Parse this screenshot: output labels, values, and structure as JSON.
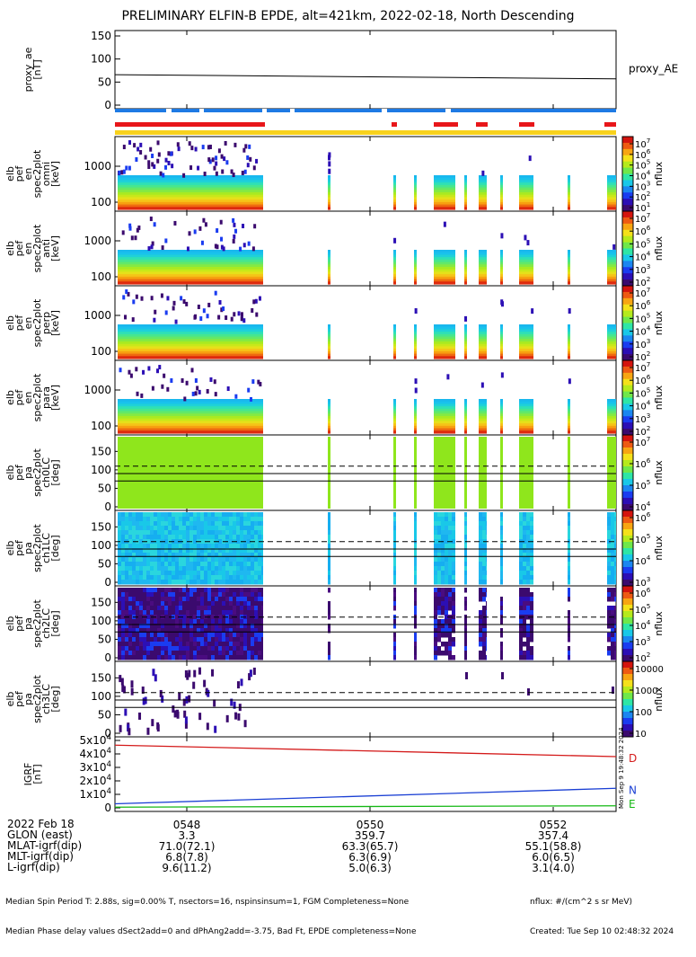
{
  "title": "PRELIMINARY ELFIN-B EPDE, alt=421km, 2022-02-18, North Descending",
  "side_stamp": "Mon Sep  9 19:48:32 2024",
  "time_ticks": [
    "0548",
    "0550",
    "0552"
  ],
  "orbit_rows": [
    {
      "label": "2022 Feb 18",
      "values": [
        "0548",
        "0550",
        "0552"
      ]
    },
    {
      "label": "GLON (east)",
      "values": [
        "3.3",
        "359.7",
        "357.4"
      ]
    },
    {
      "label": "MLAT-igrf(dip)",
      "values": [
        "71.0(72.1)",
        "63.3(65.7)",
        "55.1(58.8)"
      ]
    },
    {
      "label": "MLT-igrf(dip)",
      "values": [
        "6.8(7.8)",
        "6.3(6.9)",
        "6.0(6.5)"
      ]
    },
    {
      "label": "L-igrf(dip)",
      "values": [
        "9.6(11.2)",
        "5.0(6.3)",
        "3.1(4.0)"
      ]
    }
  ],
  "footer_left": [
    "Median Spin Period T: 2.88s, sig=0.00% T, nsectors=16, nspinsinsum=1, FGM Completeness=None",
    "Median Phase delay values dSect2add=0 and dPhAng2add=-3.75, Bad Ft, EPDE completeness=None"
  ],
  "footer_right": [
    "nflux: #/(cm^2 s sr MeV)",
    "Created: Tue Sep 10 02:48:32 2024"
  ],
  "colors": {
    "science_bar": "#e8161a",
    "fast_bar": "#1e7ae4",
    "sun_bar": "#f8d21d",
    "line_D": "#d41a1a",
    "line_N": "#1a3fd4",
    "line_E": "#14b814"
  },
  "chart_data": [
    {
      "id": "proxy_ae",
      "type": "line",
      "ylabel": "proxy_ae [nT]",
      "yticks": [
        "150",
        "100",
        "50",
        "0"
      ],
      "ylim": [
        0,
        150
      ],
      "side_label": "proxy_AE",
      "x": [
        "05:46:48",
        "05:53:14"
      ],
      "y": [
        66,
        57
      ]
    },
    {
      "id": "omni",
      "type": "heatmap",
      "ylabel": "elb pef en spec2plot omni [keV]",
      "yticks": [
        "1000",
        "100"
      ],
      "colorbar": {
        "label": "nflux",
        "ticks": [
          "10^7",
          "10^6",
          "10^5",
          "10^4",
          "10^3",
          "10^2",
          "10^1"
        ]
      }
    },
    {
      "id": "anti",
      "type": "heatmap",
      "ylabel": "elb pef en spec2plot anti [keV]",
      "yticks": [
        "1000",
        "100"
      ],
      "colorbar": {
        "label": "nflux",
        "ticks": [
          "10^7",
          "10^6",
          "10^5",
          "10^4",
          "10^3",
          "10^2"
        ]
      }
    },
    {
      "id": "perp",
      "type": "heatmap",
      "ylabel": "elb pef en spec2plot perp [keV]",
      "yticks": [
        "1000",
        "100"
      ],
      "colorbar": {
        "label": "nflux",
        "ticks": [
          "10^7",
          "10^6",
          "10^5",
          "10^4",
          "10^3",
          "10^2"
        ]
      }
    },
    {
      "id": "para",
      "type": "heatmap",
      "ylabel": "elb pef en spec2plot para [keV]",
      "yticks": [
        "1000",
        "100"
      ],
      "colorbar": {
        "label": "nflux",
        "ticks": [
          "10^7",
          "10^6",
          "10^5",
          "10^4",
          "10^3",
          "10^2"
        ]
      }
    },
    {
      "id": "ch0",
      "type": "heatmap",
      "ylabel": "elb pef pa spec2plot ch0LC [deg]",
      "yticks": [
        "150",
        "100",
        "50",
        "0"
      ],
      "colorbar": {
        "label": "nflux",
        "ticks": [
          "10^7",
          "10^6",
          "10^5",
          "10^4"
        ]
      }
    },
    {
      "id": "ch1",
      "type": "heatmap",
      "ylabel": "elb pef pa spec2plot ch1LC [deg]",
      "yticks": [
        "150",
        "100",
        "50",
        "0"
      ],
      "colorbar": {
        "label": "nflux",
        "ticks": [
          "10^6",
          "10^5",
          "10^4",
          "10^3"
        ]
      }
    },
    {
      "id": "ch2",
      "type": "heatmap",
      "ylabel": "elb pef pa spec2plot ch2LC [deg]",
      "yticks": [
        "150",
        "100",
        "50",
        "0"
      ],
      "colorbar": {
        "label": "nflux",
        "ticks": [
          "10^6",
          "10^5",
          "10^4",
          "10^3",
          "10^2"
        ]
      }
    },
    {
      "id": "ch3",
      "type": "heatmap",
      "ylabel": "elb pef pa spec2plot ch3LC [deg]",
      "yticks": [
        "150",
        "100",
        "50",
        "0"
      ],
      "colorbar": {
        "label": "nflux",
        "ticks": [
          "10000",
          "1000",
          "100",
          "10"
        ]
      }
    },
    {
      "id": "igrf",
      "type": "line",
      "ylabel": "IGRF [nT]",
      "yticks": [
        "5x10^4",
        "4x10^4",
        "3x10^4",
        "2x10^4",
        "1x10^4",
        "0"
      ],
      "ylim": [
        0,
        50000
      ],
      "series": [
        {
          "name": "D",
          "x": [
            "05:46:48",
            "05:53:14"
          ],
          "y": [
            46500,
            38000
          ]
        },
        {
          "name": "N",
          "x": [
            "05:46:48",
            "05:53:14"
          ],
          "y": [
            3000,
            14500
          ]
        },
        {
          "name": "E",
          "x": [
            "05:46:48",
            "05:53:14"
          ],
          "y": [
            500,
            1500
          ]
        }
      ]
    }
  ]
}
